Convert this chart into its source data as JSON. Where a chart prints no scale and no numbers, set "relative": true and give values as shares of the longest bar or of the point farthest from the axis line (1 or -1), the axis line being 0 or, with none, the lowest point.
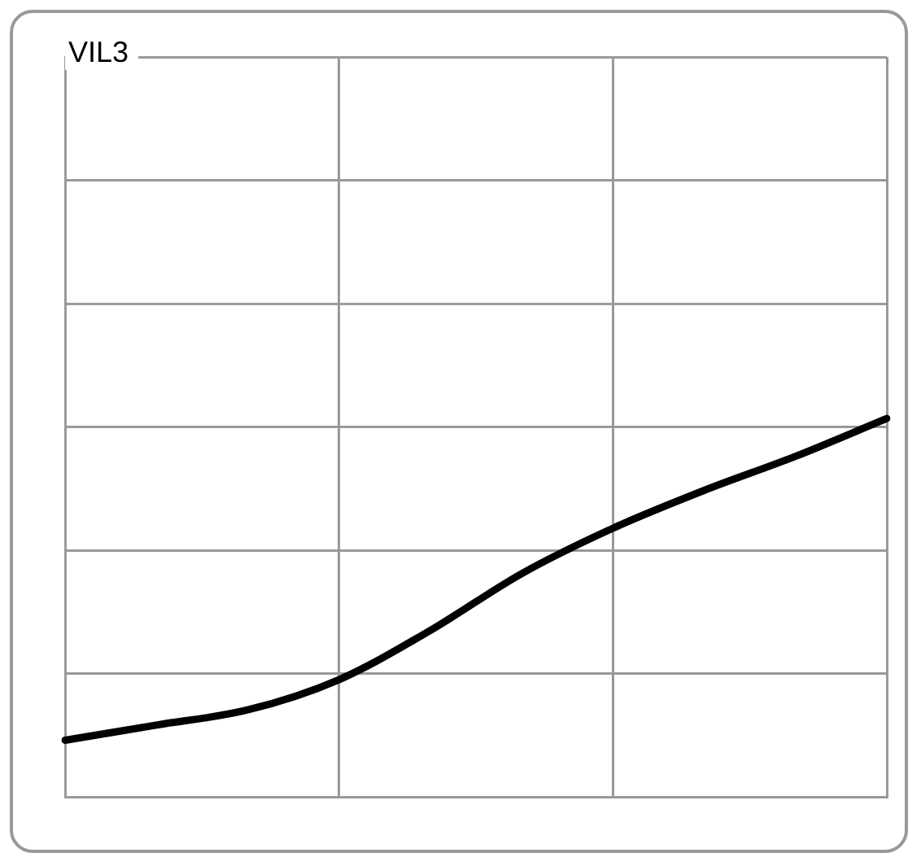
{
  "chart_data": {
    "type": "line",
    "title": "VIL3",
    "relative": true,
    "grid": true,
    "legend": false,
    "marker": "none",
    "line_style": "solid",
    "categories": [
      null,
      null,
      null,
      null,
      null,
      null,
      null,
      null,
      null,
      null
    ],
    "series": [
      {
        "color": "#000000",
        "values": [
          0.15,
          0.19,
          0.23,
          0.31,
          0.44,
          0.59,
          0.71,
          0.81,
          0.9,
          1
        ]
      }
    ]
  }
}
